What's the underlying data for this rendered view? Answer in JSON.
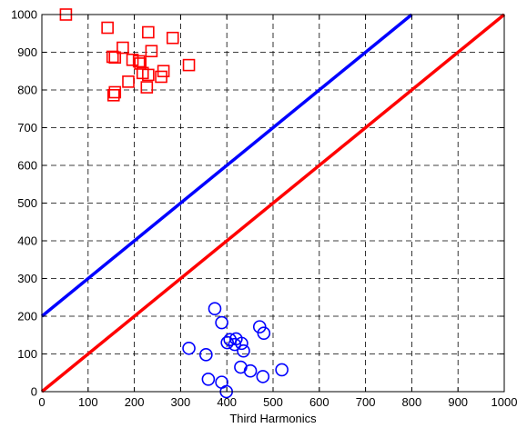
{
  "chart_data": {
    "type": "scatter",
    "title": "",
    "xlabel": "Third Harmonics",
    "ylabel": "",
    "xlim": [
      0,
      1000
    ],
    "ylim": [
      0,
      1000
    ],
    "xticks": [
      0,
      100,
      200,
      300,
      400,
      500,
      600,
      700,
      800,
      900,
      1000
    ],
    "yticks": [
      0,
      100,
      200,
      300,
      400,
      500,
      600,
      700,
      800,
      900,
      1000
    ],
    "grid": true,
    "grid_style": "dashed",
    "series": [
      {
        "marker": "square",
        "color": "#ff0000",
        "points": [
          [
            52,
            1000
          ],
          [
            142,
            965
          ],
          [
            230,
            953
          ],
          [
            283,
            938
          ],
          [
            175,
            912
          ],
          [
            237,
            903
          ],
          [
            153,
            888
          ],
          [
            158,
            886
          ],
          [
            196,
            880
          ],
          [
            210,
            876
          ],
          [
            213,
            870
          ],
          [
            318,
            866
          ],
          [
            263,
            850
          ],
          [
            218,
            845
          ],
          [
            230,
            840
          ],
          [
            258,
            835
          ],
          [
            187,
            822
          ],
          [
            227,
            807
          ],
          [
            158,
            794
          ],
          [
            155,
            786
          ]
        ]
      },
      {
        "marker": "circle",
        "color": "#0000ff",
        "points": [
          [
            374,
            220
          ],
          [
            389,
            183
          ],
          [
            471,
            172
          ],
          [
            480,
            155
          ],
          [
            407,
            138
          ],
          [
            420,
            140
          ],
          [
            401,
            130
          ],
          [
            432,
            128
          ],
          [
            417,
            125
          ],
          [
            318,
            115
          ],
          [
            436,
            108
          ],
          [
            355,
            98
          ],
          [
            430,
            65
          ],
          [
            451,
            55
          ],
          [
            519,
            58
          ],
          [
            478,
            40
          ],
          [
            360,
            33
          ],
          [
            389,
            25
          ],
          [
            399,
            0
          ]
        ]
      }
    ],
    "lines": [
      {
        "color": "#0000ff",
        "x": [
          0,
          800
        ],
        "y": [
          200,
          1000
        ]
      },
      {
        "color": "#ff0000",
        "x": [
          0,
          1000
        ],
        "y": [
          0,
          1000
        ]
      }
    ]
  }
}
